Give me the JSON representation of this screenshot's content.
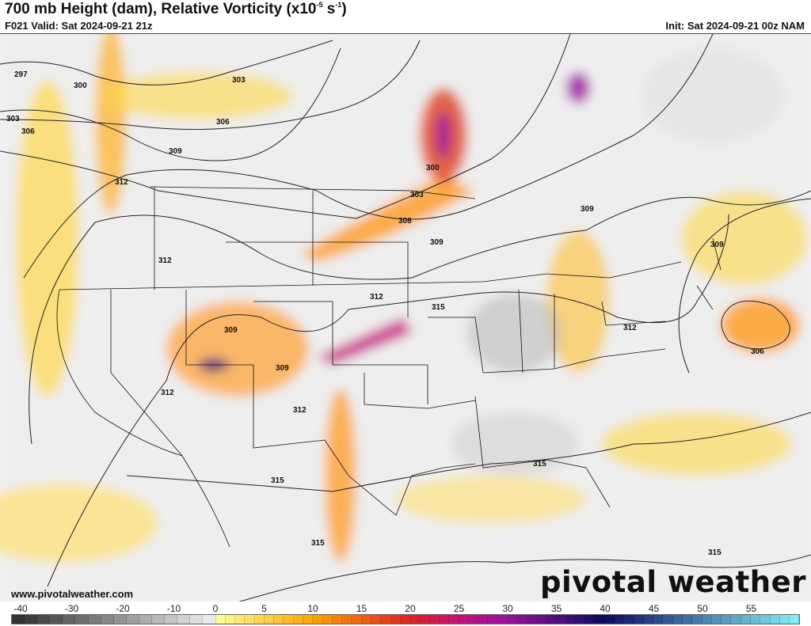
{
  "header": {
    "title_main": "700 mb Height (dam), Relative Vorticity (x10",
    "title_exp1": "-5",
    "title_mid": " s",
    "title_exp2": "-1",
    "title_end": ")",
    "valid": "F021 Valid: Sat 2024-09-21 21z",
    "init": "Init: Sat 2024-09-21 00z NAM"
  },
  "map": {
    "contour_labels": [
      "297",
      "300",
      "303",
      "306",
      "309",
      "312",
      "303",
      "306",
      "300",
      "303",
      "306",
      "309",
      "309",
      "312",
      "315",
      "309",
      "309",
      "312",
      "312",
      "312",
      "306",
      "309",
      "315",
      "315",
      "315",
      "315"
    ],
    "contour_color": "#222222"
  },
  "footer": {
    "website": "www.pivotalweather.com",
    "logo": "pivotal weather"
  },
  "colorbar": {
    "ticks": [
      "-40",
      "-30",
      "-20",
      "-10",
      "0",
      "5",
      "10",
      "15",
      "20",
      "25",
      "30",
      "35",
      "40",
      "45",
      "50",
      "55"
    ],
    "tick_values": [
      -40,
      -30,
      -20,
      -10,
      0,
      5,
      10,
      15,
      20,
      25,
      30,
      35,
      40,
      45,
      50,
      55
    ],
    "min": -40,
    "max": 60,
    "color_stops": [
      {
        "v": -40,
        "c": "#2b2b2b"
      },
      {
        "v": -0.1,
        "c": "#f0f0f0"
      },
      {
        "v": 0,
        "c": "#ffff99"
      },
      {
        "v": 10,
        "c": "#ffa500"
      },
      {
        "v": 20,
        "c": "#e02020"
      },
      {
        "v": 25,
        "c": "#c8107a"
      },
      {
        "v": 30,
        "c": "#9a10a0"
      },
      {
        "v": 40,
        "c": "#0a0a60"
      },
      {
        "v": 50,
        "c": "#4a80b0"
      },
      {
        "v": 60,
        "c": "#80f4f4"
      }
    ]
  }
}
